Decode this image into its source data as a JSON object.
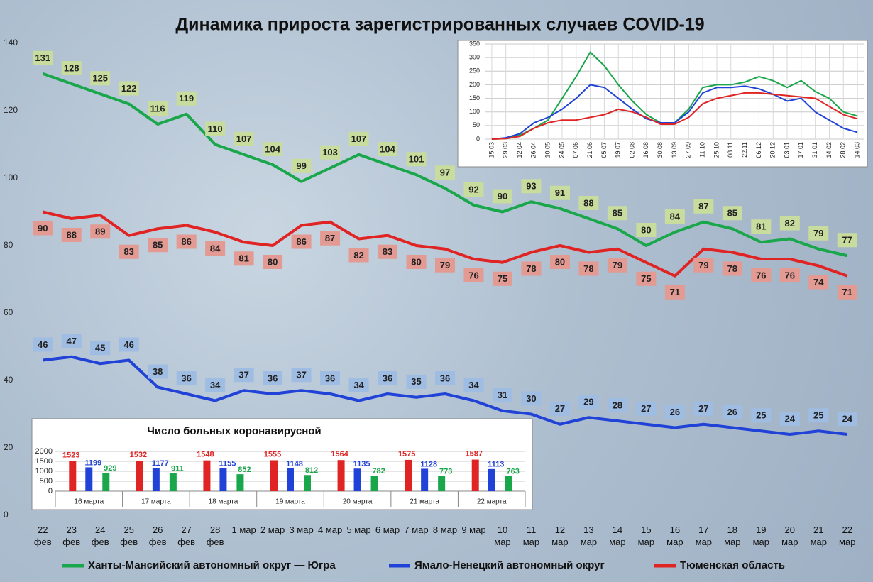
{
  "chart_data": [
    {
      "type": "line",
      "title": "Динамика прироста зарегистрированных случаев COVID-19",
      "categories": [
        "22\nфев",
        "23\nфев",
        "24\nфев",
        "25\nфев",
        "26\nфев",
        "27\nфев",
        "28\nфев",
        "1 мар",
        "2 мар",
        "3 мар",
        "4 мар",
        "5 мар",
        "6 мар",
        "7 мар",
        "8 мар",
        "9 мар",
        "10\nмар",
        "11\nмар",
        "12\nмар",
        "13\nмар",
        "14\nмар",
        "15\nмар",
        "16\nмар",
        "17\nмар",
        "18\nмар",
        "19\nмар",
        "20\nмар",
        "21\nмар",
        "22\nмар"
      ],
      "series": [
        {
          "name": "Ханты-Мансийский автономный округ — Югра",
          "color": "#1aa64a",
          "label_color": "#c8dc9e",
          "label_position": "above",
          "values": [
            131,
            128,
            125,
            122,
            116,
            119,
            110,
            107,
            104,
            99,
            103,
            107,
            104,
            101,
            97,
            92,
            90,
            93,
            91,
            88,
            85,
            80,
            84,
            87,
            85,
            81,
            82,
            79,
            77
          ]
        },
        {
          "name": "Ямало-Ненецкий автономный округ",
          "color": "#2142d6",
          "label_color": "#9fbce3",
          "label_position": "above",
          "values": [
            46,
            47,
            45,
            46,
            38,
            36,
            34,
            37,
            36,
            37,
            36,
            34,
            36,
            35,
            36,
            34,
            31,
            30,
            27,
            29,
            28,
            27,
            26,
            27,
            26,
            25,
            24,
            25,
            24
          ]
        },
        {
          "name": "Тюменская область",
          "color": "#e02424",
          "label_color": "#e29a92",
          "label_position": "below",
          "values": [
            90,
            88,
            89,
            83,
            85,
            86,
            84,
            81,
            80,
            86,
            87,
            82,
            83,
            80,
            79,
            76,
            75,
            78,
            80,
            78,
            79,
            75,
            71,
            79,
            78,
            76,
            76,
            74,
            71
          ]
        }
      ],
      "ylim": [
        0,
        140
      ],
      "yticks": [
        0,
        20,
        40,
        60,
        80,
        100,
        120,
        140
      ],
      "grid": false,
      "data_labels": true,
      "legend": "bottom"
    },
    {
      "type": "line",
      "categories": [
        "15.03",
        "29.03",
        "12.04",
        "26.04",
        "10.05",
        "24.05",
        "07.06",
        "21.06",
        "05.07",
        "19.07",
        "02.08",
        "16.08",
        "30.08",
        "13.09",
        "27.09",
        "11.10",
        "25.10",
        "08.11",
        "22.11",
        "06.12",
        "20.12",
        "03.01",
        "17.01",
        "31.01",
        "14.02",
        "28.02",
        "14.03"
      ],
      "series": [
        {
          "color": "#1aa64a",
          "values": [
            0,
            2,
            15,
            40,
            70,
            150,
            230,
            320,
            270,
            200,
            140,
            90,
            60,
            60,
            110,
            190,
            200,
            200,
            210,
            230,
            215,
            190,
            215,
            175,
            150,
            100,
            85
          ]
        },
        {
          "color": "#2142d6",
          "values": [
            0,
            5,
            20,
            60,
            80,
            110,
            150,
            200,
            190,
            150,
            110,
            75,
            60,
            60,
            100,
            170,
            190,
            190,
            195,
            185,
            165,
            140,
            150,
            100,
            70,
            40,
            25
          ]
        },
        {
          "color": "#e02424",
          "values": [
            0,
            2,
            10,
            40,
            60,
            70,
            70,
            80,
            90,
            110,
            100,
            80,
            55,
            55,
            80,
            130,
            150,
            160,
            170,
            170,
            165,
            160,
            155,
            150,
            120,
            90,
            75
          ]
        }
      ],
      "ylim": [
        0,
        350
      ],
      "yticks": [
        0,
        50,
        100,
        150,
        200,
        250,
        300,
        350
      ],
      "grid": true,
      "data_labels": false
    },
    {
      "type": "bar",
      "title": "Число больных коронавирусной",
      "categories": [
        "16 марта",
        "17 марта",
        "18 марта",
        "19 марта",
        "20 марта",
        "21 марта",
        "22 марта"
      ],
      "series": [
        {
          "color": "#e02424",
          "values": [
            1523,
            1532,
            1548,
            1555,
            1564,
            1575,
            1587
          ]
        },
        {
          "color": "#2142d6",
          "values": [
            1199,
            1177,
            1155,
            1148,
            1135,
            1128,
            1113
          ]
        },
        {
          "color": "#1aa64a",
          "values": [
            929,
            911,
            852,
            812,
            782,
            773,
            763
          ]
        }
      ],
      "ylim": [
        0,
        2000
      ],
      "yticks": [
        0,
        500,
        1000,
        1500,
        2000
      ],
      "grid": true,
      "data_labels": true
    }
  ]
}
